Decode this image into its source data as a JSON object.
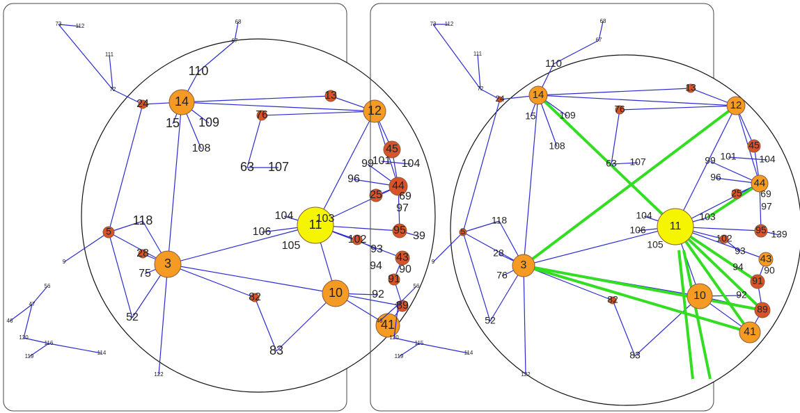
{
  "panels": [
    {
      "nodes": [
        "73",
        "112",
        "68",
        "67",
        "111",
        "72",
        "9",
        "56",
        "47",
        "46",
        "120",
        "116",
        "119",
        "114",
        "122",
        "14",
        "24",
        "110",
        "15",
        "109",
        "108",
        "76",
        "13",
        "12",
        "45",
        "63",
        "107",
        "99",
        "101",
        "104",
        "96",
        "44",
        "25",
        "69",
        "97",
        "11",
        "104",
        "103",
        "106",
        "105",
        "95",
        "39",
        "102",
        "93",
        "43",
        "94",
        "90",
        "91",
        "10",
        "92",
        "89",
        "41",
        "3",
        "118",
        "28",
        "75",
        "52",
        "82",
        "83",
        "5"
      ]
    },
    {
      "nodes": [
        "73",
        "112",
        "68",
        "67",
        "111",
        "72",
        "9",
        "56",
        "47",
        "46",
        "120",
        "115",
        "119",
        "114",
        "122",
        "14",
        "24",
        "110",
        "15",
        "109",
        "108",
        "76",
        "13",
        "12",
        "45",
        "63",
        "107",
        "99",
        "101",
        "104",
        "96",
        "44",
        "25",
        "69",
        "97",
        "11",
        "104",
        "103",
        "106",
        "105",
        "95",
        "139",
        "102",
        "93",
        "43",
        "94",
        "90",
        "91",
        "10",
        "92",
        "89",
        "41",
        "3",
        "118",
        "28",
        "76",
        "52",
        "82",
        "83",
        "5"
      ]
    }
  ]
}
